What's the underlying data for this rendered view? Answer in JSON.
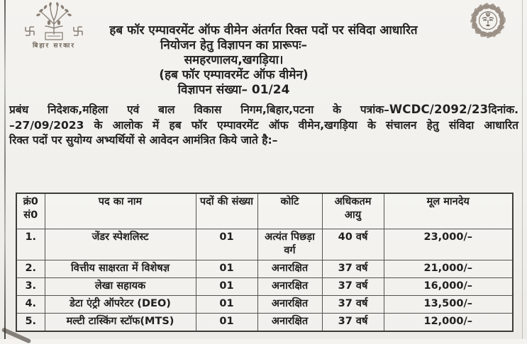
{
  "colors": {
    "paper": "#f2f1ee",
    "ink": "#232220",
    "table_border": "#54524e",
    "logo_gray": "#8a8076"
  },
  "logos": {
    "left_caption": "बिहार सरकार"
  },
  "header": {
    "line1": "हब फॉर एम्पावरमेंट ऑफ वीमेन अंतर्गत रिक्त पदों पर संविदा आधारित",
    "line2": "नियोजन हेतु विज्ञापन का  प्रारूपः–",
    "line3": "समहरणालय,खगड़िया।",
    "line4": "(हब फॉर एम्पावरमेंट ऑफ वीमेन)",
    "line5": "विज्ञापन संख्या– 01/24"
  },
  "intro": {
    "line1_pre": "प्रबंध निदेशक,महिला एवं बाल विकास निगम,बिहार,पटना के पत्रांक–",
    "line1_ref": "WCDC/2092/23",
    "line1_post": "दिनांक.",
    "line2": "–27/09/2023 के आलोक में हब फॉर एम्पावरमेंट ऑफ वीमेन,खगड़िया के संचालन हेतु संविदा आधारित",
    "line3": "रिक्त पदों पर सुयोग्य अभ्यर्थियों से आवेदन आमंत्रित किये जाते है:–"
  },
  "table": {
    "headers": [
      "क्रं0 सं0",
      "पद का नाम",
      "पदों की संख्या",
      "कोटि",
      "अधिकतम आयु",
      "मूल मानदेय"
    ],
    "rows": [
      [
        "1.",
        "जेंडर स्पेशलिस्ट",
        "01",
        "अत्यंत पिछड़ा वर्ग",
        "40 वर्ष",
        "23,000/–"
      ],
      [
        "2.",
        "वित्तीय साक्षरता में विशेषज्ञ",
        "01",
        "अनारक्षित",
        "37 वर्ष",
        "21,000/–"
      ],
      [
        "3.",
        "लेखा सहायक",
        "01",
        "अनारक्षित",
        "37 वर्ष",
        "16,000/–"
      ],
      [
        "4.",
        "डेटा एंट्री ऑपरेटर (DEO)",
        "01",
        "अनारक्षित",
        "37 वर्ष",
        "13,500/–"
      ],
      [
        "5.",
        "मल्टी टास्किंग स्टॉफ(MTS)",
        "01",
        "अनारक्षित",
        "37 वर्ष",
        "12,000/–"
      ]
    ]
  }
}
